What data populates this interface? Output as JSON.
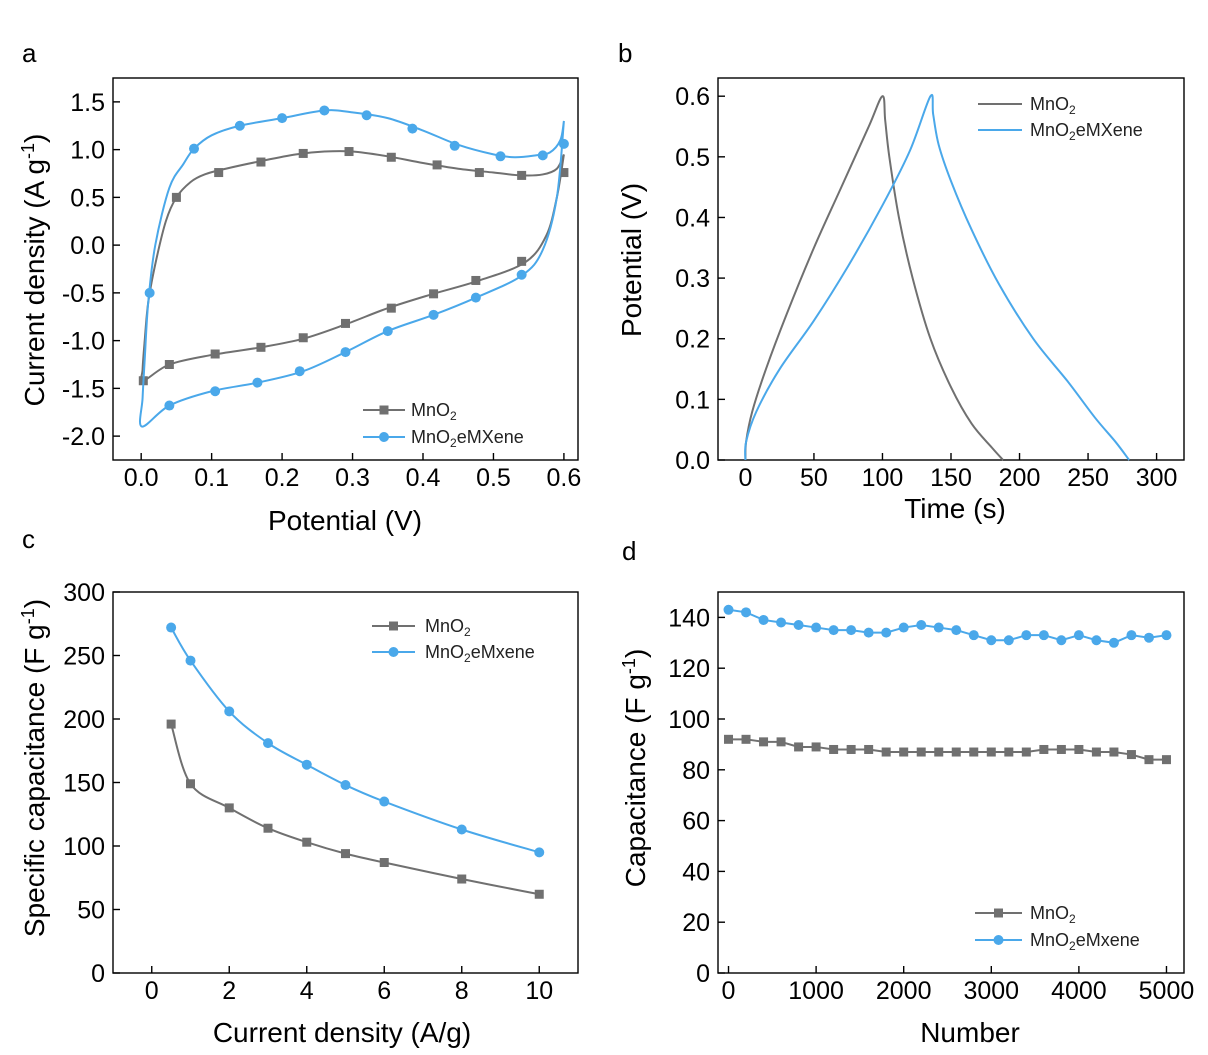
{
  "colors": {
    "mno2": "#707070",
    "mxene": "#4aa8ea"
  },
  "chart_data": [
    {
      "panel": "a",
      "type": "line",
      "xlabel": "Potential (V)",
      "ylabel": "Current density (A g-1)",
      "xlim": [
        -0.04,
        0.62
      ],
      "ylim": [
        -2.25,
        1.75
      ],
      "xticks": [
        "0.0",
        "0.1",
        "0.2",
        "0.3",
        "0.4",
        "0.5",
        "0.6"
      ],
      "yticks": [
        "-2.0",
        "-1.5",
        "-1.0",
        "-0.5",
        "0.0",
        "0.5",
        "1.0",
        "1.5"
      ],
      "legend": {
        "position": "bottom-right",
        "entries": [
          "MnO2",
          "MnO2eMXene"
        ]
      },
      "series": [
        {
          "name": "MnO2",
          "closed": true,
          "curve": [
            [
              0.6,
              0.95
            ],
            [
              0.59,
              0.8
            ],
            [
              0.57,
              0.74
            ],
            [
              0.54,
              0.73
            ],
            [
              0.5,
              0.76
            ],
            [
              0.45,
              0.8
            ],
            [
              0.4,
              0.86
            ],
            [
              0.35,
              0.93
            ],
            [
              0.3,
              0.98
            ],
            [
              0.26,
              0.98
            ],
            [
              0.22,
              0.95
            ],
            [
              0.17,
              0.88
            ],
            [
              0.12,
              0.8
            ],
            [
              0.09,
              0.74
            ],
            [
              0.07,
              0.66
            ],
            [
              0.05,
              0.5
            ],
            [
              0.035,
              0.25
            ],
            [
              0.02,
              -0.2
            ],
            [
              0.01,
              -0.6
            ],
            [
              0.005,
              -1.0
            ],
            [
              0.002,
              -1.3
            ],
            [
              0.003,
              -1.42
            ],
            [
              0.04,
              -1.25
            ],
            [
              0.1,
              -1.15
            ],
            [
              0.17,
              -1.07
            ],
            [
              0.23,
              -0.98
            ],
            [
              0.29,
              -0.83
            ],
            [
              0.35,
              -0.66
            ],
            [
              0.41,
              -0.52
            ],
            [
              0.48,
              -0.37
            ],
            [
              0.545,
              -0.18
            ],
            [
              0.575,
              0.1
            ],
            [
              0.59,
              0.5
            ],
            [
              0.6,
              0.95
            ]
          ],
          "markers": [
            [
              0.003,
              -1.42
            ],
            [
              0.05,
              0.5
            ],
            [
              0.11,
              0.76
            ],
            [
              0.17,
              0.87
            ],
            [
              0.23,
              0.96
            ],
            [
              0.295,
              0.98
            ],
            [
              0.355,
              0.92
            ],
            [
              0.42,
              0.84
            ],
            [
              0.48,
              0.76
            ],
            [
              0.54,
              0.73
            ],
            [
              0.6,
              0.76
            ],
            [
              0.04,
              -1.25
            ],
            [
              0.105,
              -1.14
            ],
            [
              0.17,
              -1.07
            ],
            [
              0.23,
              -0.97
            ],
            [
              0.29,
              -0.82
            ],
            [
              0.355,
              -0.66
            ],
            [
              0.415,
              -0.51
            ],
            [
              0.475,
              -0.37
            ],
            [
              0.54,
              -0.17
            ]
          ]
        },
        {
          "name": "MnO2eMXene",
          "closed": true,
          "curve": [
            [
              0.6,
              1.3
            ],
            [
              0.595,
              1.1
            ],
            [
              0.58,
              0.97
            ],
            [
              0.56,
              0.94
            ],
            [
              0.53,
              0.92
            ],
            [
              0.5,
              0.95
            ],
            [
              0.45,
              1.05
            ],
            [
              0.4,
              1.2
            ],
            [
              0.35,
              1.33
            ],
            [
              0.3,
              1.39
            ],
            [
              0.26,
              1.41
            ],
            [
              0.2,
              1.33
            ],
            [
              0.14,
              1.25
            ],
            [
              0.1,
              1.15
            ],
            [
              0.075,
              1.01
            ],
            [
              0.06,
              0.85
            ],
            [
              0.04,
              0.6
            ],
            [
              0.02,
              0.0
            ],
            [
              0.01,
              -0.6
            ],
            [
              0.005,
              -1.2
            ],
            [
              0.002,
              -1.6
            ],
            [
              0.001,
              -1.9
            ],
            [
              0.04,
              -1.68
            ],
            [
              0.1,
              -1.53
            ],
            [
              0.165,
              -1.44
            ],
            [
              0.23,
              -1.32
            ],
            [
              0.29,
              -1.12
            ],
            [
              0.35,
              -0.9
            ],
            [
              0.415,
              -0.73
            ],
            [
              0.475,
              -0.55
            ],
            [
              0.54,
              -0.32
            ],
            [
              0.57,
              -0.05
            ],
            [
              0.59,
              0.5
            ],
            [
              0.6,
              1.3
            ]
          ],
          "markers": [
            [
              0.012,
              -0.5
            ],
            [
              0.075,
              1.01
            ],
            [
              0.14,
              1.25
            ],
            [
              0.2,
              1.33
            ],
            [
              0.26,
              1.41
            ],
            [
              0.32,
              1.36
            ],
            [
              0.385,
              1.22
            ],
            [
              0.445,
              1.04
            ],
            [
              0.51,
              0.93
            ],
            [
              0.57,
              0.94
            ],
            [
              0.6,
              1.06
            ],
            [
              0.04,
              -1.68
            ],
            [
              0.105,
              -1.53
            ],
            [
              0.165,
              -1.44
            ],
            [
              0.225,
              -1.32
            ],
            [
              0.29,
              -1.12
            ],
            [
              0.35,
              -0.9
            ],
            [
              0.415,
              -0.73
            ],
            [
              0.475,
              -0.55
            ],
            [
              0.54,
              -0.31
            ]
          ]
        }
      ]
    },
    {
      "panel": "b",
      "type": "line",
      "xlabel": "Time (s)",
      "ylabel": "Potential (V)",
      "xlim": [
        -20,
        320
      ],
      "ylim": [
        0,
        0.63
      ],
      "xticks": [
        "0",
        "50",
        "100",
        "150",
        "200",
        "250",
        "300"
      ],
      "yticks": [
        "0.0",
        "0.1",
        "0.2",
        "0.3",
        "0.4",
        "0.5",
        "0.6"
      ],
      "legend": {
        "position": "top-right",
        "entries": [
          "MnO2",
          "MnO2eMXene"
        ]
      },
      "series": [
        {
          "name": "MnO2",
          "curve": [
            [
              0,
              0
            ],
            [
              0.5,
              0.03
            ],
            [
              5,
              0.08
            ],
            [
              15,
              0.15
            ],
            [
              30,
              0.24
            ],
            [
              50,
              0.35
            ],
            [
              70,
              0.45
            ],
            [
              90,
              0.55
            ],
            [
              100,
              0.6
            ],
            [
              102,
              0.56
            ],
            [
              105,
              0.5
            ],
            [
              112,
              0.4
            ],
            [
              122,
              0.3
            ],
            [
              135,
              0.2
            ],
            [
              150,
              0.12
            ],
            [
              165,
              0.06
            ],
            [
              180,
              0.02
            ],
            [
              188,
              0
            ]
          ]
        },
        {
          "name": "MnO2eMXene",
          "curve": [
            [
              0,
              0
            ],
            [
              0.5,
              0.03
            ],
            [
              8,
              0.08
            ],
            [
              25,
              0.15
            ],
            [
              50,
              0.23
            ],
            [
              75,
              0.32
            ],
            [
              100,
              0.42
            ],
            [
              120,
              0.51
            ],
            [
              135,
              0.6
            ],
            [
              137,
              0.57
            ],
            [
              141,
              0.52
            ],
            [
              150,
              0.46
            ],
            [
              165,
              0.38
            ],
            [
              185,
              0.29
            ],
            [
              210,
              0.2
            ],
            [
              235,
              0.13
            ],
            [
              255,
              0.07
            ],
            [
              270,
              0.03
            ],
            [
              280,
              0
            ]
          ]
        }
      ]
    },
    {
      "panel": "c",
      "type": "line",
      "xlabel": "Current density (A/g)",
      "ylabel": "Specific capacitance (F g-1)",
      "xlim": [
        -1,
        11
      ],
      "ylim": [
        0,
        300
      ],
      "xticks": [
        "0",
        "2",
        "4",
        "6",
        "8",
        "10"
      ],
      "yticks": [
        "0",
        "50",
        "100",
        "150",
        "200",
        "250",
        "300"
      ],
      "legend": {
        "position": "top-right",
        "entries": [
          "MnO2",
          "MnO2eMxene"
        ]
      },
      "x": [
        0.5,
        1,
        2,
        3,
        4,
        5,
        6,
        8,
        10
      ],
      "series": [
        {
          "name": "MnO2",
          "values": [
            196,
            149,
            130,
            114,
            103,
            94,
            87,
            74,
            62
          ]
        },
        {
          "name": "MnO2eMxene",
          "values": [
            272,
            246,
            206,
            181,
            164,
            148,
            135,
            113,
            95
          ]
        }
      ]
    },
    {
      "panel": "d",
      "type": "scatter",
      "xlabel": "Number",
      "ylabel": "Capacitance (F g-1)",
      "xlim": [
        -120,
        5200
      ],
      "ylim": [
        0,
        150
      ],
      "xticks": [
        "0",
        "1000",
        "2000",
        "3000",
        "4000",
        "5000"
      ],
      "yticks": [
        "0",
        "20",
        "40",
        "60",
        "80",
        "100",
        "120",
        "140"
      ],
      "legend": {
        "position": "bottom-right",
        "entries": [
          "MnO2",
          "MnO2eMxene"
        ]
      },
      "x": [
        0,
        200,
        400,
        600,
        800,
        1000,
        1200,
        1400,
        1600,
        1800,
        2000,
        2200,
        2400,
        2600,
        2800,
        3000,
        3200,
        3400,
        3600,
        3800,
        4000,
        4200,
        4400,
        4600,
        4800,
        5000
      ],
      "series": [
        {
          "name": "MnO2",
          "values": [
            92,
            92,
            91,
            91,
            89,
            89,
            88,
            88,
            88,
            87,
            87,
            87,
            87,
            87,
            87,
            87,
            87,
            87,
            88,
            88,
            88,
            87,
            87,
            86,
            84,
            84
          ]
        },
        {
          "name": "MnO2eMxene",
          "values": [
            143,
            142,
            139,
            138,
            137,
            136,
            135,
            135,
            134,
            134,
            136,
            137,
            136,
            135,
            133,
            131,
            131,
            133,
            133,
            131,
            133,
            131,
            130,
            133,
            132,
            133
          ]
        }
      ]
    }
  ]
}
